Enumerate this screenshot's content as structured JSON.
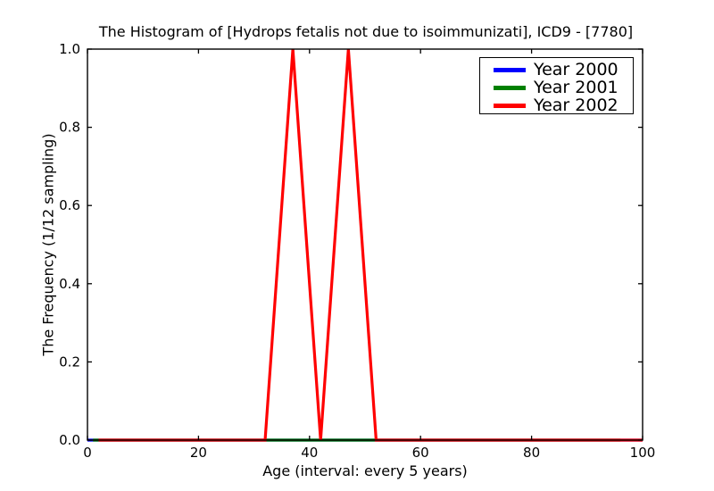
{
  "chart_data": {
    "type": "line",
    "title": "The Histogram of [Hydrops fetalis not due to isoimmunizati], ICD9 - [7780]",
    "xlabel": "Age (interval: every 5 years)",
    "ylabel": "The Frequency (1/12 sampling)",
    "xlim": [
      0,
      100
    ],
    "ylim": [
      0.0,
      1.0
    ],
    "xticks": [
      0,
      20,
      40,
      60,
      80,
      100
    ],
    "xtick_labels": [
      "0",
      "20",
      "40",
      "60",
      "80",
      "100"
    ],
    "yticks": [
      0.0,
      0.2,
      0.4,
      0.6,
      0.8,
      1.0
    ],
    "ytick_labels": [
      "0.0",
      "0.2",
      "0.4",
      "0.6",
      "0.8",
      "1.0"
    ],
    "grid": "off",
    "legend_position": "upper right",
    "axis_color": "#000000",
    "background_color": "#ffffff",
    "series": [
      {
        "name": "Year 2000",
        "color": "#0000ff",
        "x": [
          0,
          5,
          10,
          15,
          20,
          25,
          30,
          35,
          40,
          45,
          50,
          55,
          60,
          65,
          70,
          75,
          80,
          85,
          90,
          95,
          100
        ],
        "y": [
          0,
          0,
          0,
          0,
          0,
          0,
          0,
          0,
          0,
          0,
          0,
          0,
          0,
          0,
          0,
          0,
          0,
          0,
          0,
          0,
          0
        ]
      },
      {
        "name": "Year 2001",
        "color": "#008000",
        "x": [
          1,
          6,
          11,
          16,
          21,
          26,
          31,
          36,
          41,
          46,
          51,
          56,
          61,
          66,
          71,
          76,
          81,
          86,
          91,
          96
        ],
        "y": [
          0,
          0,
          0,
          0,
          0,
          0,
          0,
          0,
          0,
          0,
          0,
          0,
          0,
          0,
          0,
          0,
          0,
          0,
          0,
          0
        ]
      },
      {
        "name": "Year 2002",
        "color": "#ff0000",
        "x": [
          2,
          7,
          12,
          17,
          22,
          27,
          32,
          37,
          42,
          47,
          52,
          57,
          62,
          67,
          72,
          77,
          82,
          87,
          92,
          97,
          100
        ],
        "y": [
          0,
          0,
          0,
          0,
          0,
          0,
          0,
          1,
          0,
          1,
          0,
          0,
          0,
          0,
          0,
          0,
          0,
          0,
          0,
          0,
          0
        ]
      }
    ]
  }
}
